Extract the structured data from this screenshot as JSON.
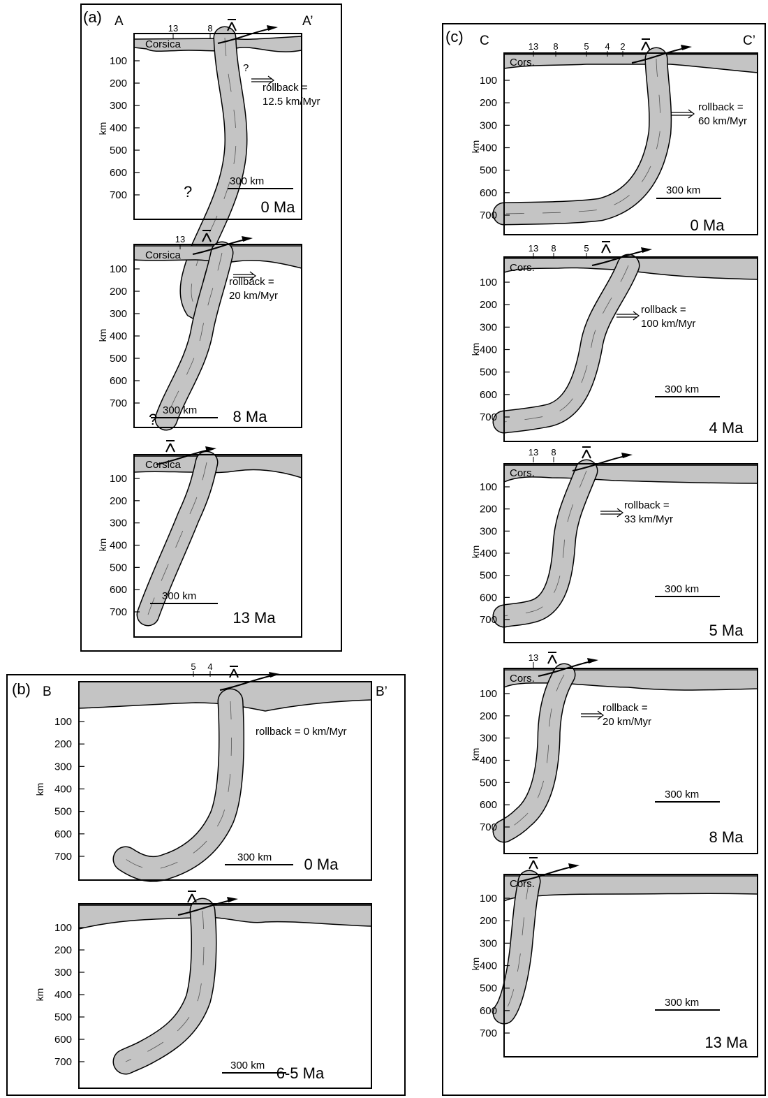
{
  "colors": {
    "slab": "#c4c4c4",
    "line": "#000000",
    "frame": "#000000"
  },
  "depth_ticks": [
    "100",
    "200",
    "300",
    "400",
    "500",
    "600",
    "700"
  ],
  "depth_unit": "km",
  "panels": {
    "a": {
      "tag": "(a)",
      "start": "A",
      "end": "A’",
      "sections": [
        {
          "age": "0 Ma",
          "rollback": [
            "rollback =",
            "12.5 km/Myr"
          ],
          "scale": "300 km",
          "landmass": "Corsica",
          "top_marks": [
            "13",
            "8"
          ],
          "unknown": [
            "?",
            "?"
          ]
        },
        {
          "age": "8 Ma",
          "rollback": [
            "rollback =",
            "20 km/Myr"
          ],
          "scale": "300 km",
          "landmass": "Corsica",
          "top_marks": [
            "13"
          ],
          "unknown": [
            "?"
          ]
        },
        {
          "age": "13 Ma",
          "rollback": [],
          "scale": "300 km",
          "landmass": "Corsica",
          "top_marks": [],
          "unknown": []
        }
      ]
    },
    "b": {
      "tag": "(b)",
      "start": "B",
      "end": "B’",
      "sections": [
        {
          "age": "0 Ma",
          "rollback": [
            "rollback = 0 km/Myr"
          ],
          "scale": "300 km",
          "top_marks": [
            "5",
            "4"
          ]
        },
        {
          "age": "6-5 Ma",
          "rollback": [],
          "scale": "300 km",
          "top_marks": []
        }
      ]
    },
    "c": {
      "tag": "(c)",
      "start": "C",
      "end": "C’",
      "sections": [
        {
          "age": "0 Ma",
          "rollback": [
            "rollback =",
            "60 km/Myr"
          ],
          "scale": "300 km",
          "landmass": "Cors.",
          "top_marks": [
            "13",
            "8",
            "5",
            "4",
            "2"
          ]
        },
        {
          "age": "4 Ma",
          "rollback": [
            "rollback =",
            "100 km/Myr"
          ],
          "scale": "300 km",
          "landmass": "Cors.",
          "top_marks": [
            "13",
            "8",
            "5"
          ]
        },
        {
          "age": "5 Ma",
          "rollback": [
            "rollback =",
            "33 km/Myr"
          ],
          "scale": "300 km",
          "landmass": "Cors.",
          "top_marks": [
            "13",
            "8"
          ]
        },
        {
          "age": "8 Ma",
          "rollback": [
            "rollback =",
            "20 km/Myr"
          ],
          "scale": "300 km",
          "landmass": "Cors.",
          "top_marks": [
            "13"
          ]
        },
        {
          "age": "13 Ma",
          "rollback": [],
          "scale": "300 km",
          "landmass": "Cors.",
          "top_marks": []
        }
      ]
    }
  }
}
